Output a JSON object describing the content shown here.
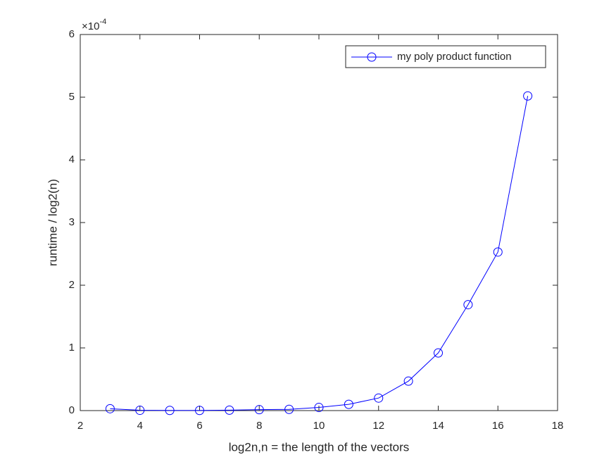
{
  "chart_data": {
    "type": "line",
    "xlabel": "log2n,n = the length of the vectors",
    "ylabel": "runtime / log2(n)",
    "y_multiplier": {
      "base": "×10",
      "exponent": "-4"
    },
    "x": [
      3,
      4,
      5,
      6,
      7,
      8,
      9,
      10,
      11,
      12,
      13,
      14,
      15,
      16,
      17
    ],
    "series": [
      {
        "name": "my poly product function",
        "color": "#0000ff",
        "marker": "circle",
        "values": [
          0.03,
          0.005,
          0.003,
          0.003,
          0.007,
          0.015,
          0.02,
          0.05,
          0.1,
          0.2,
          0.47,
          0.92,
          1.69,
          2.53,
          5.02
        ]
      }
    ],
    "xlim": [
      2,
      18
    ],
    "xticks": [
      2,
      4,
      6,
      8,
      10,
      12,
      14,
      16,
      18
    ],
    "ylim": [
      0,
      6
    ],
    "yticks": [
      0,
      1,
      2,
      3,
      4,
      5,
      6
    ],
    "grid": false,
    "legend": "upper right"
  }
}
